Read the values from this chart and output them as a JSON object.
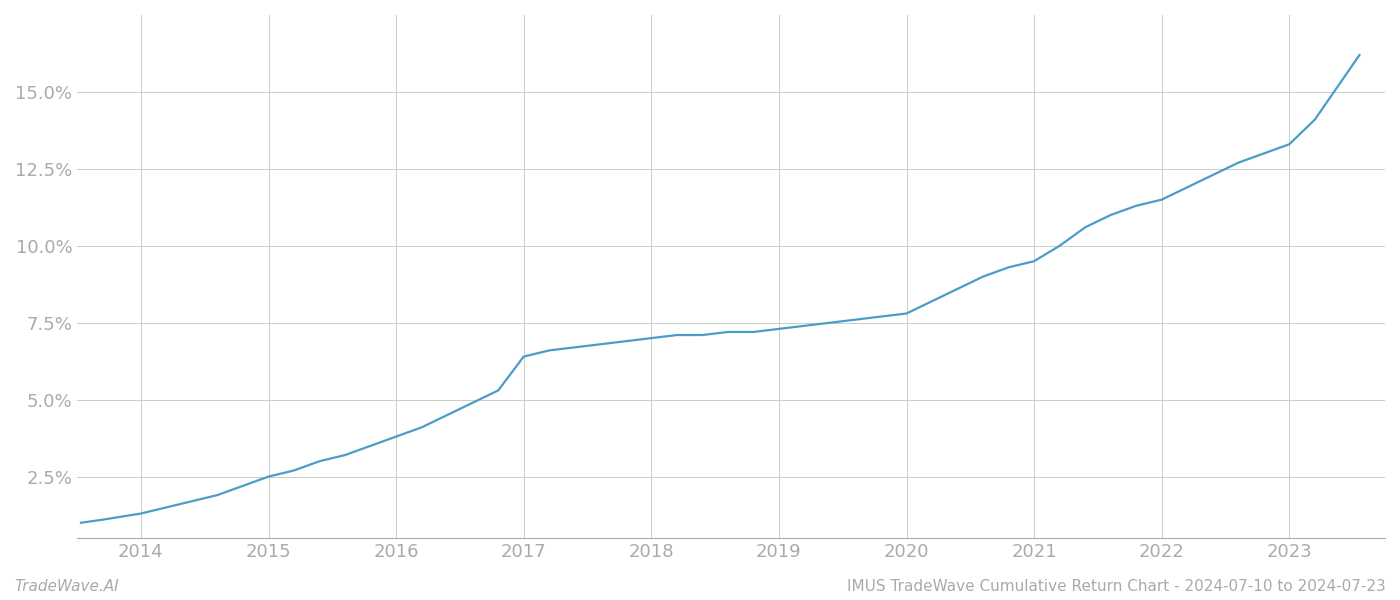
{
  "x_values": [
    2013.53,
    2013.7,
    2013.85,
    2014.0,
    2014.2,
    2014.4,
    2014.6,
    2014.8,
    2015.0,
    2015.2,
    2015.4,
    2015.6,
    2015.8,
    2016.0,
    2016.2,
    2016.4,
    2016.6,
    2016.8,
    2017.0,
    2017.2,
    2017.4,
    2017.6,
    2017.8,
    2018.0,
    2018.2,
    2018.4,
    2018.6,
    2018.8,
    2019.0,
    2019.2,
    2019.4,
    2019.6,
    2019.8,
    2020.0,
    2020.2,
    2020.4,
    2020.6,
    2020.8,
    2021.0,
    2021.2,
    2021.4,
    2021.6,
    2021.8,
    2022.0,
    2022.2,
    2022.4,
    2022.6,
    2022.8,
    2023.0,
    2023.2,
    2023.4,
    2023.55
  ],
  "y_values": [
    0.01,
    0.011,
    0.012,
    0.013,
    0.015,
    0.017,
    0.019,
    0.022,
    0.025,
    0.027,
    0.03,
    0.032,
    0.035,
    0.038,
    0.041,
    0.045,
    0.049,
    0.053,
    0.064,
    0.066,
    0.067,
    0.068,
    0.069,
    0.07,
    0.071,
    0.071,
    0.072,
    0.072,
    0.073,
    0.074,
    0.075,
    0.076,
    0.077,
    0.078,
    0.082,
    0.086,
    0.09,
    0.093,
    0.095,
    0.1,
    0.106,
    0.11,
    0.113,
    0.115,
    0.119,
    0.123,
    0.127,
    0.13,
    0.133,
    0.141,
    0.153,
    0.162
  ],
  "line_color": "#4b9cc8",
  "line_width": 1.6,
  "background_color": "#ffffff",
  "grid_color": "#cccccc",
  "x_ticks": [
    2014,
    2015,
    2016,
    2017,
    2018,
    2019,
    2020,
    2021,
    2022,
    2023
  ],
  "y_ticks": [
    0.025,
    0.05,
    0.075,
    0.1,
    0.125,
    0.15
  ],
  "y_tick_labels": [
    "2.5%",
    "5.0%",
    "7.5%",
    "10.0%",
    "12.5%",
    "15.0%"
  ],
  "xlim": [
    2013.5,
    2023.75
  ],
  "ylim": [
    0.005,
    0.175
  ],
  "footer_left": "TradeWave.AI",
  "footer_right": "IMUS TradeWave Cumulative Return Chart - 2024-07-10 to 2024-07-23",
  "footer_fontsize": 11,
  "tick_fontsize": 13,
  "tick_color": "#aaaaaa",
  "spine_color": "#cccccc"
}
